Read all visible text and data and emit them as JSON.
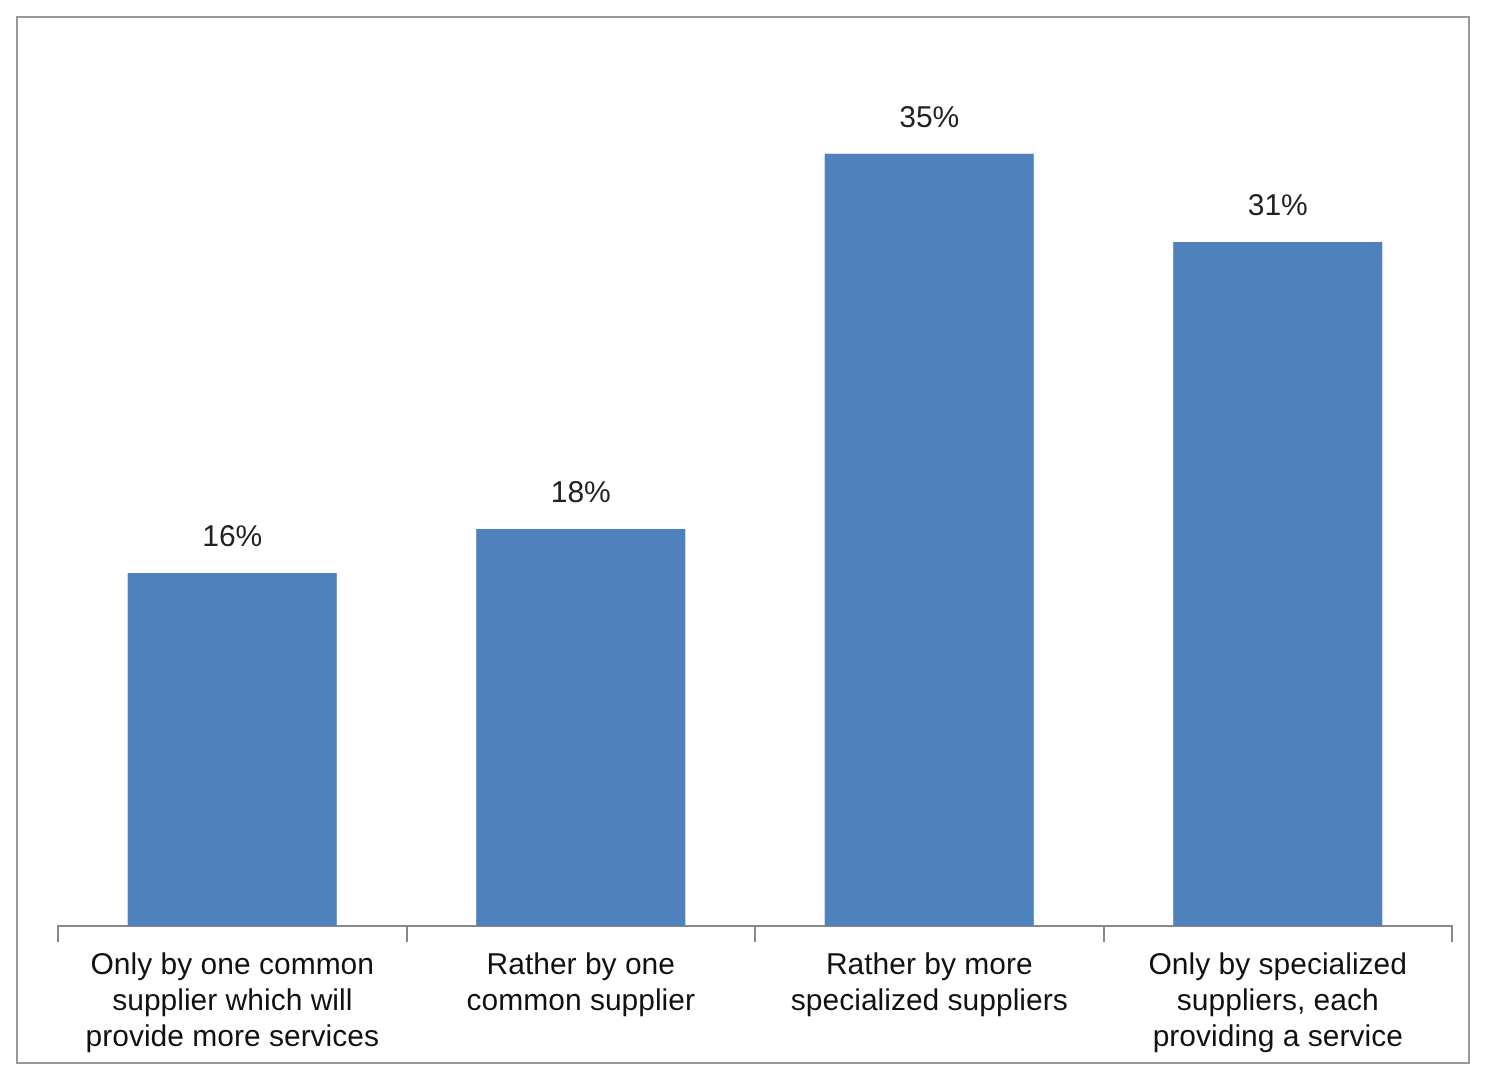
{
  "chart_data": {
    "type": "bar",
    "categories": [
      "Only by one common supplier which will provide more services",
      "Rather by one common supplier",
      "Rather by more specialized suppliers",
      "Only by specialized suppliers, each providing a service"
    ],
    "values": [
      16,
      18,
      35,
      31
    ],
    "color": "#4f81bd",
    "value_labels": [
      "16%",
      "18%",
      "35%",
      "31%"
    ]
  }
}
